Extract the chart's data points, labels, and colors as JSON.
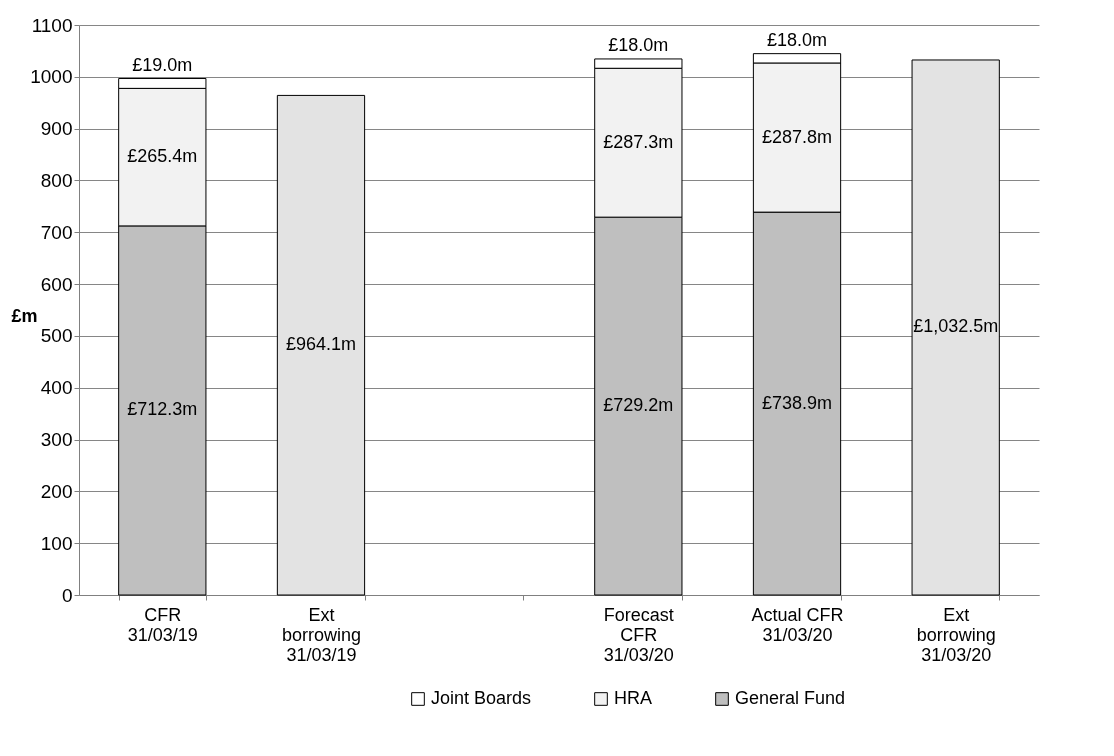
{
  "chart_data": {
    "type": "bar",
    "stacked": true,
    "ylabel": "£m",
    "categories": [
      "CFR\n31/03/19",
      "Ext\nborrowing\n31/03/19",
      null,
      "Forecast\nCFR\n31/03/20",
      "Actual CFR\n31/03/20",
      "Ext\nborrowing\n31/03/20"
    ],
    "series": [
      {
        "name": "General Fund",
        "color": "#bfbfbf",
        "values": [
          712.3,
          null,
          null,
          729.2,
          738.9,
          null
        ],
        "value_labels": [
          "£712.3m",
          null,
          null,
          "£729.2m",
          "£738.9m",
          null
        ]
      },
      {
        "name": "HRA",
        "color": "#f2f2f2",
        "values": [
          265.4,
          null,
          null,
          287.3,
          287.8,
          null
        ],
        "value_labels": [
          "£265.4m",
          null,
          null,
          "£287.3m",
          "£287.8m",
          null
        ]
      },
      {
        "name": "Joint Boards",
        "color": "#ffffff",
        "values": [
          19.0,
          null,
          null,
          18.0,
          18.0,
          null
        ],
        "value_labels": [
          "£19.0m",
          null,
          null,
          "£18.0m",
          "£18.0m",
          null
        ]
      },
      {
        "color": "#e3e3e3",
        "values": [
          null,
          964.1,
          null,
          null,
          null,
          1032.5
        ],
        "value_labels": [
          null,
          "£964.1m",
          null,
          null,
          null,
          "£1,032.5m"
        ]
      }
    ],
    "ylim": [
      0,
      1100
    ],
    "yticks": [
      0,
      100,
      200,
      300,
      400,
      500,
      600,
      700,
      800,
      900,
      1000,
      1100
    ],
    "grid": "y",
    "legend": "bottom"
  }
}
